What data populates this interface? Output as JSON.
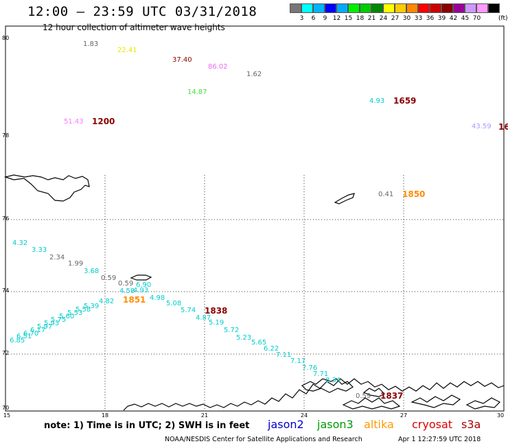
{
  "header": {
    "title": "12:00 – 23:59 UTC 03/31/2018",
    "subtitle": "12 hour collection of altimeter wave heights"
  },
  "legend": {
    "unit": "(ft)",
    "colors": [
      "#777777",
      "#00ffff",
      "#00b4ff",
      "#0000ff",
      "#00aaff",
      "#00ee00",
      "#00cc00",
      "#008800",
      "#ffff00",
      "#ffcc00",
      "#ff8800",
      "#ff0000",
      "#cc0000",
      "#880000",
      "#990099",
      "#cc99ff",
      "#ff99ff",
      "#000000"
    ],
    "labels": [
      "3",
      "6",
      "9",
      "12",
      "15",
      "18",
      "21",
      "24",
      "27",
      "30",
      "33",
      "36",
      "39",
      "42",
      "45",
      "70"
    ]
  },
  "axes": {
    "lat_labels": [
      "80",
      "78",
      "76",
      "74",
      "72",
      "70"
    ],
    "lon_labels": [
      "15",
      "18",
      "21",
      "24",
      "27",
      "30"
    ]
  },
  "values": [
    {
      "t": "1.83",
      "c": "#666666"
    },
    {
      "t": "22.41",
      "c": "#e6e600"
    },
    {
      "t": "37.40",
      "c": "#8b0000"
    },
    {
      "t": "86.02",
      "c": "#ee66ee"
    },
    {
      "t": "1.62",
      "c": "#666666"
    },
    {
      "t": "14.87",
      "c": "#44dd44"
    },
    {
      "t": "4.93",
      "c": "#00cccc"
    },
    {
      "t": "51.43",
      "c": "#ff77ff"
    },
    {
      "t": "43.59",
      "c": "#aa99ff"
    },
    {
      "t": "0.41",
      "c": "#666666"
    },
    {
      "t": "4.32",
      "c": "#00cccc"
    },
    {
      "t": "3.33",
      "c": "#00cccc"
    },
    {
      "t": "2.34",
      "c": "#666666"
    },
    {
      "t": "1.99",
      "c": "#666666"
    },
    {
      "t": "3.68",
      "c": "#00cccc"
    },
    {
      "t": "0.59",
      "c": "#666666"
    },
    {
      "t": "0.59",
      "c": "#666666"
    },
    {
      "t": "6.90",
      "c": "#00cccc"
    },
    {
      "t": "4.58",
      "c": "#00cccc"
    },
    {
      "t": "4.93",
      "c": "#00cccc"
    },
    {
      "t": "4.98",
      "c": "#00cccc"
    },
    {
      "t": "5.08",
      "c": "#00cccc"
    },
    {
      "t": "5.74",
      "c": "#00cccc"
    },
    {
      "t": "4.87",
      "c": "#00cccc"
    },
    {
      "t": "5.19",
      "c": "#00cccc"
    },
    {
      "t": "5.72",
      "c": "#00cccc"
    },
    {
      "t": "5.23",
      "c": "#00cccc"
    },
    {
      "t": "5.65",
      "c": "#00cccc"
    },
    {
      "t": "6.22",
      "c": "#00cccc"
    },
    {
      "t": "7.11",
      "c": "#00cccc"
    },
    {
      "t": "7.17",
      "c": "#00cccc"
    },
    {
      "t": "7.76",
      "c": "#00cccc"
    },
    {
      "t": "7.71",
      "c": "#00cccc"
    },
    {
      "t": "8.34",
      "c": "#00cccc"
    },
    {
      "t": "6.85",
      "c": "#00cccc"
    },
    {
      "t": "6.51",
      "c": "#00cccc"
    },
    {
      "t": "6.70",
      "c": "#00cccc"
    },
    {
      "t": "6.17",
      "c": "#00cccc"
    },
    {
      "t": "5.97",
      "c": "#00cccc"
    },
    {
      "t": "5.93",
      "c": "#00cccc"
    },
    {
      "t": "5.75",
      "c": "#00cccc"
    },
    {
      "t": "5.60",
      "c": "#00cccc"
    },
    {
      "t": "5.53",
      "c": "#00cccc"
    },
    {
      "t": "5.58",
      "c": "#00cccc"
    },
    {
      "t": "5.39",
      "c": "#00cccc"
    },
    {
      "t": "4.82",
      "c": "#00cccc"
    },
    {
      "t": "0.59",
      "c": "#666666"
    }
  ],
  "times": [
    {
      "t": "1659",
      "c": "#8b0000"
    },
    {
      "t": "1200",
      "c": "#8b0000"
    },
    {
      "t": "16",
      "c": "#8b0000"
    },
    {
      "t": "1850",
      "c": "#ff8c00"
    },
    {
      "t": "1851",
      "c": "#ff8c00"
    },
    {
      "t": "1838",
      "c": "#8b0000"
    },
    {
      "t": "1837",
      "c": "#8b0000"
    }
  ],
  "footer": {
    "note": "note: 1) Time is in UTC; 2) SWH is in feet",
    "satellites": [
      {
        "name": "jason2",
        "color": "#0000cc"
      },
      {
        "name": "jason3",
        "color": "#009900"
      },
      {
        "name": "altika",
        "color": "#ff9900"
      },
      {
        "name": "cryosat",
        "color": "#dd0000"
      },
      {
        "name": "s3a",
        "color": "#aa0000"
      }
    ],
    "credit": "NOAA/NESDIS Center for Satellite Applications and Research",
    "timestamp": "Apr  1 12:27:59 UTC 2018"
  }
}
